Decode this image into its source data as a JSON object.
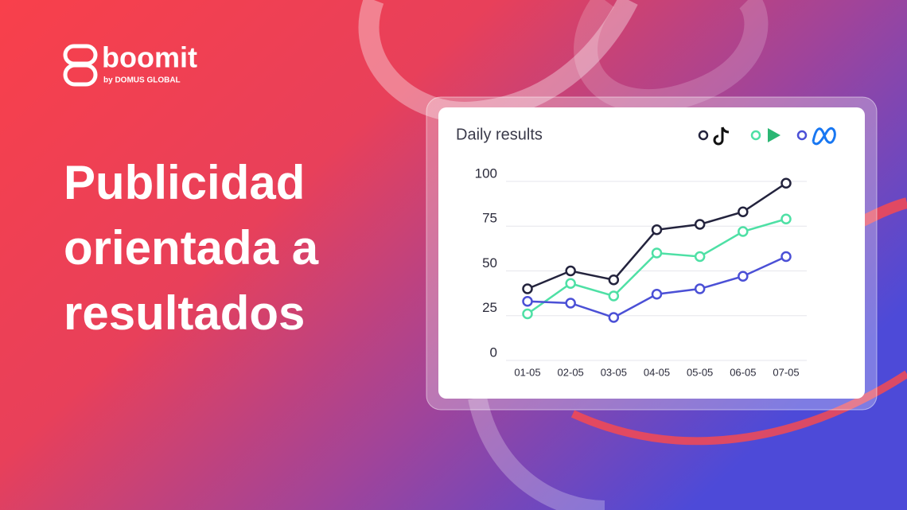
{
  "brand": {
    "name": "boomit",
    "tagline": "by DOMUS GLOBAL"
  },
  "headline": [
    "Publicidad",
    "orientada a",
    "resultados"
  ],
  "chart_data": {
    "type": "line",
    "title": "Daily results",
    "categories": [
      "01-05",
      "02-05",
      "03-05",
      "04-05",
      "05-05",
      "06-05",
      "07-05"
    ],
    "series": [
      {
        "color": "#23233d",
        "values": [
          40,
          50,
          45,
          73,
          76,
          83,
          99
        ]
      },
      {
        "color": "#4ee0a5",
        "values": [
          26,
          43,
          36,
          60,
          58,
          72,
          79
        ]
      },
      {
        "color": "#4b50d6",
        "values": [
          33,
          32,
          24,
          37,
          40,
          47,
          58
        ]
      }
    ],
    "ylim": [
      0,
      100
    ],
    "yticks": [
      0,
      25,
      50,
      75,
      100
    ],
    "grid": true
  }
}
